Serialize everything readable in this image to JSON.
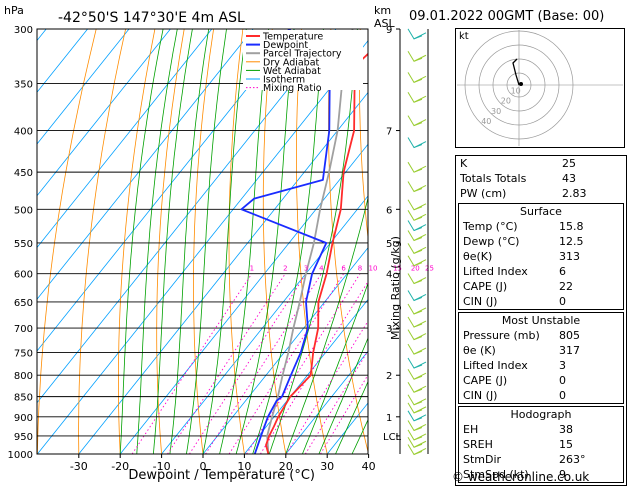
{
  "header": {
    "pressure_unit": "hPa",
    "location": "-42°50'S  147°30'E  4m  ASL",
    "height_unit": "km",
    "height_unit2": "ASL",
    "datetime": "09.01.2022  00GMT  (Base: 00)"
  },
  "legend": [
    "Temperature",
    "Dewpoint",
    "Parcel Trajectory",
    "Dry Adiabat",
    "Wet Adiabat",
    "Isotherm",
    "Mixing Ratio"
  ],
  "colors": {
    "temperature": "#ff2b2b",
    "dewpoint": "#1a2cff",
    "parcel": "#a0a0a0",
    "dry_adiabat": "#ff8c00",
    "wet_adiabat": "#00a000",
    "isotherm": "#00a0ff",
    "mixing_ratio": "#ff00cc",
    "wind": "#9acd32",
    "wind_teal": "#20b2aa"
  },
  "chart_data": {
    "type": "skew-t",
    "xlabel": "Dewpoint / Temperature (°C)",
    "ylabel": "Mixing Ratio (g/kg)",
    "x_ticks": [
      -30,
      -20,
      -10,
      0,
      10,
      20,
      30,
      40
    ],
    "pressure_levels": [
      300,
      350,
      400,
      450,
      500,
      550,
      600,
      650,
      700,
      750,
      800,
      850,
      900,
      950,
      1000
    ],
    "km_labels": [
      {
        "p": 300,
        "label": "9"
      },
      {
        "p": 400,
        "label": "7"
      },
      {
        "p": 500,
        "label": "6"
      },
      {
        "p": 550,
        "label": "5"
      },
      {
        "p": 600,
        "label": "4"
      },
      {
        "p": 700,
        "label": "3"
      },
      {
        "p": 800,
        "label": "2"
      },
      {
        "p": 900,
        "label": "1"
      },
      {
        "p": 950,
        "label": "LCL"
      }
    ],
    "mixing_ratio_labels": [
      "1",
      "2",
      "3",
      "4",
      "6",
      "8",
      "10",
      "15",
      "20",
      "25"
    ],
    "temperature": [
      {
        "p": 1000,
        "t": 15.8
      },
      {
        "p": 975,
        "t": 13.5
      },
      {
        "p": 950,
        "t": 12.5
      },
      {
        "p": 925,
        "t": 11.8
      },
      {
        "p": 900,
        "t": 11.0
      },
      {
        "p": 850,
        "t": 10.0
      },
      {
        "p": 800,
        "t": 10.8
      },
      {
        "p": 750,
        "t": 7.0
      },
      {
        "p": 700,
        "t": 3.5
      },
      {
        "p": 650,
        "t": -1.5
      },
      {
        "p": 600,
        "t": -5.0
      },
      {
        "p": 550,
        "t": -9.5
      },
      {
        "p": 500,
        "t": -14.0
      },
      {
        "p": 450,
        "t": -20.5
      },
      {
        "p": 400,
        "t": -26.0
      },
      {
        "p": 350,
        "t": -35.0
      },
      {
        "p": 330,
        "t": -38.0
      },
      {
        "p": 315,
        "t": -37.0
      },
      {
        "p": 300,
        "t": -40.5
      }
    ],
    "dewpoint": [
      {
        "p": 1000,
        "t": 12.5
      },
      {
        "p": 950,
        "t": 10.5
      },
      {
        "p": 900,
        "t": 8.5
      },
      {
        "p": 860,
        "t": 7.5
      },
      {
        "p": 850,
        "t": 8.0
      },
      {
        "p": 800,
        "t": 6.0
      },
      {
        "p": 750,
        "t": 4.0
      },
      {
        "p": 700,
        "t": 1.0
      },
      {
        "p": 650,
        "t": -4.5
      },
      {
        "p": 600,
        "t": -8.5
      },
      {
        "p": 550,
        "t": -11.0
      },
      {
        "p": 500,
        "t": -38.0
      },
      {
        "p": 485,
        "t": -37.0
      },
      {
        "p": 460,
        "t": -24.0
      },
      {
        "p": 400,
        "t": -32.0
      },
      {
        "p": 350,
        "t": -41.0
      },
      {
        "p": 335,
        "t": -43.0
      },
      {
        "p": 320,
        "t": -65.0
      },
      {
        "p": 300,
        "t": -61.0
      }
    ],
    "parcel": [
      {
        "p": 1000,
        "t": 15.8
      },
      {
        "p": 950,
        "t": 12.0
      },
      {
        "p": 900,
        "t": 9.5
      },
      {
        "p": 850,
        "t": 7.0
      },
      {
        "p": 800,
        "t": 4.0
      },
      {
        "p": 750,
        "t": 1.0
      },
      {
        "p": 700,
        "t": -2.5
      },
      {
        "p": 650,
        "t": -6.0
      },
      {
        "p": 600,
        "t": -10.0
      },
      {
        "p": 550,
        "t": -14.0
      },
      {
        "p": 500,
        "t": -19.0
      },
      {
        "p": 450,
        "t": -24.0
      },
      {
        "p": 400,
        "t": -30.0
      },
      {
        "p": 350,
        "t": -38.0
      },
      {
        "p": 300,
        "t": -46.0
      }
    ]
  },
  "hodograph": {
    "label": "kt",
    "ring_labels": [
      "10",
      "20",
      "30",
      "40"
    ]
  },
  "indices": {
    "rows": [
      {
        "label": "K",
        "value": "25"
      },
      {
        "label": "Totals Totals",
        "value": "43"
      },
      {
        "label": "PW (cm)",
        "value": "2.83"
      }
    ],
    "surface": {
      "title": "Surface",
      "rows": [
        {
          "label": "Temp (°C)",
          "value": "15.8"
        },
        {
          "label": "Dewp (°C)",
          "value": "12.5"
        },
        {
          "label": "θe(K)",
          "value": "313"
        },
        {
          "label": "Lifted Index",
          "value": "6"
        },
        {
          "label": "CAPE (J)",
          "value": "22"
        },
        {
          "label": "CIN (J)",
          "value": "0"
        }
      ]
    },
    "most_unstable": {
      "title": "Most Unstable",
      "rows": [
        {
          "label": "Pressure (mb)",
          "value": "805"
        },
        {
          "label": "θe (K)",
          "value": "317"
        },
        {
          "label": "Lifted Index",
          "value": "3"
        },
        {
          "label": "CAPE (J)",
          "value": "0"
        },
        {
          "label": "CIN (J)",
          "value": "0"
        }
      ]
    },
    "hodograph_table": {
      "title": "Hodograph",
      "rows": [
        {
          "label": "EH",
          "value": "38"
        },
        {
          "label": "SREH",
          "value": "15"
        },
        {
          "label": "StmDir",
          "value": "263°"
        },
        {
          "label": "StmSpd (kt)",
          "value": "9"
        }
      ]
    }
  },
  "footer": "© weatheronline.co.uk"
}
